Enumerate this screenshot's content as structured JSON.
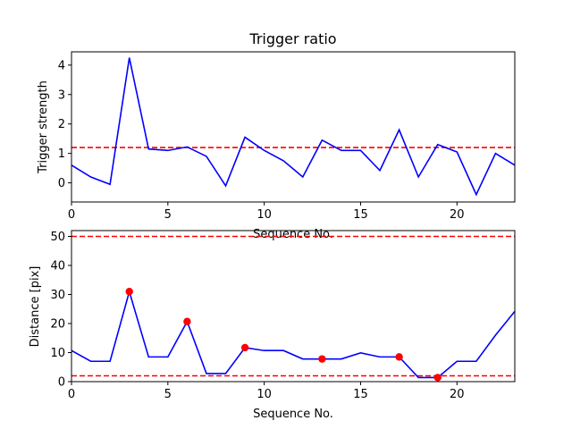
{
  "chart_data": [
    {
      "type": "line",
      "title": "Trigger ratio",
      "xlabel": "Sequence No.",
      "ylabel": "Trigger strength",
      "xlim": [
        0,
        23
      ],
      "ylim": [
        -0.65,
        4.45
      ],
      "xticks": [
        0,
        5,
        10,
        15,
        20
      ],
      "yticks": [
        0,
        1,
        2,
        3,
        4
      ],
      "grid": false,
      "series": [
        {
          "color": "#0000ff",
          "x": [
            0,
            1,
            2,
            3,
            4,
            5,
            6,
            7,
            8,
            9,
            10,
            11,
            12,
            13,
            14,
            15,
            16,
            17,
            18,
            19,
            20,
            21,
            22,
            23
          ],
          "values": [
            0.6,
            0.2,
            -0.05,
            4.25,
            1.15,
            1.1,
            1.22,
            0.9,
            -0.1,
            1.55,
            1.1,
            0.75,
            0.2,
            1.45,
            1.1,
            1.1,
            0.42,
            1.8,
            0.2,
            1.3,
            1.05,
            -0.4,
            1.0,
            0.6
          ]
        }
      ],
      "reference_lines": [
        {
          "y": 1.2,
          "color": "#ff0000",
          "style": "dashed"
        }
      ]
    },
    {
      "type": "line",
      "title": "",
      "xlabel": "Sequence No.",
      "ylabel": "Distance [pix]",
      "xlim": [
        0,
        23
      ],
      "ylim": [
        0,
        52
      ],
      "xticks": [
        0,
        5,
        10,
        15,
        20
      ],
      "yticks": [
        0,
        10,
        20,
        30,
        40,
        50
      ],
      "grid": false,
      "series": [
        {
          "color": "#0000ff",
          "x": [
            0,
            1,
            2,
            3,
            4,
            5,
            6,
            7,
            8,
            9,
            10,
            11,
            12,
            13,
            14,
            15,
            16,
            17,
            18,
            19,
            20,
            21,
            22,
            23
          ],
          "values": [
            10.7,
            7,
            7,
            31,
            8.5,
            8.5,
            20.7,
            2.8,
            2.8,
            11.7,
            10.7,
            10.7,
            7.8,
            7.8,
            7.8,
            9.9,
            8.5,
            8.5,
            1.4,
            1.4,
            7,
            7,
            16,
            24.2
          ]
        }
      ],
      "markers": {
        "color": "#ff0000",
        "x": [
          3,
          6,
          9,
          13,
          17,
          19
        ],
        "values": [
          31,
          20.7,
          11.7,
          7.8,
          8.5,
          1.4
        ]
      },
      "reference_lines": [
        {
          "y": 50,
          "color": "#ff0000",
          "style": "dashed"
        },
        {
          "y": 2,
          "color": "#ff0000",
          "style": "dashed"
        }
      ]
    }
  ]
}
